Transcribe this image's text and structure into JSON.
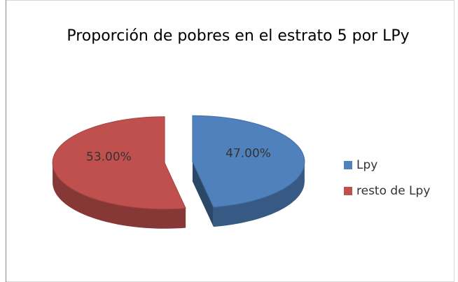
{
  "chart_data": {
    "type": "pie3d",
    "title": "Proporción de pobres en el estrato 5 por LPy",
    "categories": [
      "Lpy",
      "resto de Lpy"
    ],
    "values": [
      47,
      53
    ],
    "value_labels": [
      "47.00%",
      "53.00%"
    ],
    "colors": [
      "#4f81bd",
      "#c0504d"
    ],
    "legend": "right"
  }
}
